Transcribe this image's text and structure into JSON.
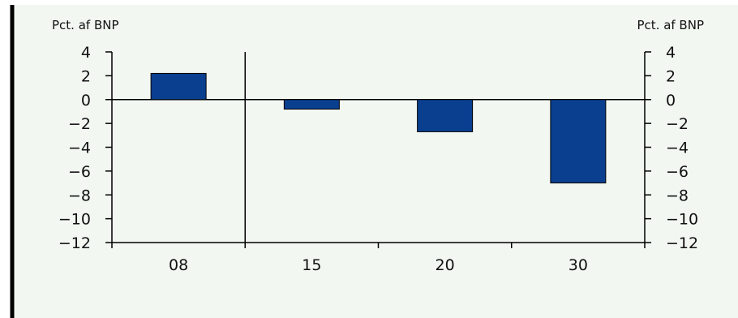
{
  "chart_data": {
    "type": "bar",
    "title": "",
    "xlabel": "",
    "ylabel": "Pct. af BNP",
    "ylabel_right": "Pct. af BNP",
    "categories": [
      "08",
      "15",
      "20",
      "30"
    ],
    "values": [
      2.2,
      -0.8,
      -2.7,
      -7.0
    ],
    "ylim": [
      -12,
      4
    ],
    "yticks": [
      4,
      2,
      0,
      -2,
      -4,
      -6,
      -8,
      -10,
      -12
    ],
    "ytick_labels": [
      "4",
      "2",
      "0",
      "−2",
      "−4",
      "−6",
      "−8",
      "−10",
      "−12"
    ],
    "grid": false,
    "legend": "none",
    "colors": {
      "bar": "#0a3f8f",
      "bar_edge": "#000000",
      "background": "#f2f7f2",
      "axis": "#000000",
      "frame": "#000000"
    }
  }
}
